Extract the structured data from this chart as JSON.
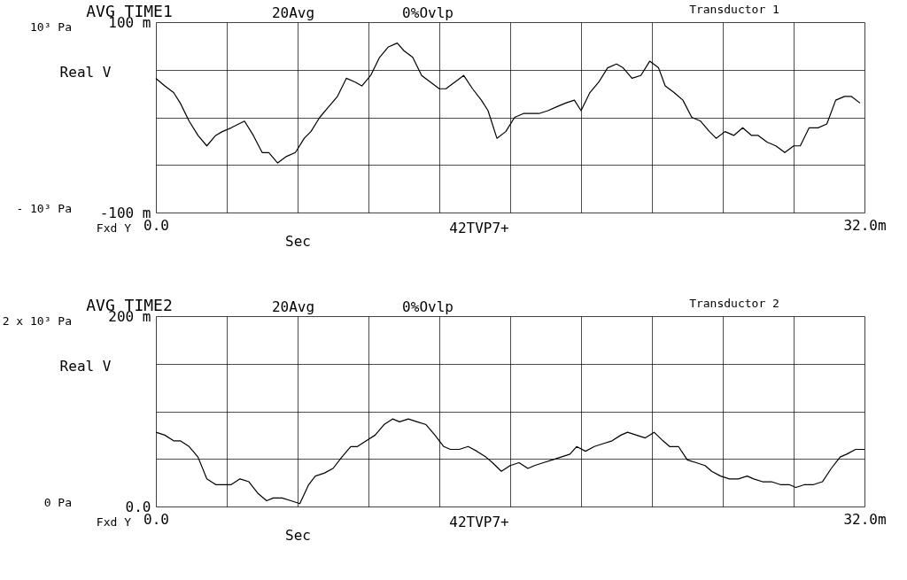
{
  "chart_data": [
    {
      "type": "line",
      "title": "AVG TIME1",
      "xlabel": "Sec",
      "ylabel": "Real V",
      "annotations": [
        "20Avg",
        "0%Ovlp",
        "Transductor 1",
        "10³ Pa",
        "- 10³ Pa",
        "Fxd Y",
        "42TVP7+"
      ],
      "xlim": [
        0,
        32
      ],
      "xticks": [
        {
          "value": 0,
          "label": "0.0"
        },
        {
          "value": 3.2,
          "label": null
        },
        {
          "value": 6.4,
          "label": null
        },
        {
          "value": 9.6,
          "label": null
        },
        {
          "value": 12.8,
          "label": null
        },
        {
          "value": 16,
          "label": null
        },
        {
          "value": 19.2,
          "label": null
        },
        {
          "value": 22.4,
          "label": null
        },
        {
          "value": 25.6,
          "label": null
        },
        {
          "value": 28.8,
          "label": null
        },
        {
          "value": 32,
          "label": "32.0m"
        }
      ],
      "ylim": [
        -100,
        100
      ],
      "yticks": [
        {
          "value": -100,
          "label": "-100 m"
        },
        {
          "value": -50,
          "label": null
        },
        {
          "value": 0,
          "label": null
        },
        {
          "value": 50,
          "label": null
        },
        {
          "value": 100,
          "label": "100 m"
        }
      ],
      "grid": true,
      "series": [
        {
          "color": "#000000",
          "x": [
            0.0,
            0.4,
            0.8,
            1.1,
            1.5,
            1.9,
            2.3,
            2.7,
            3.0,
            3.4,
            4.0,
            4.4,
            4.8,
            5.1,
            5.5,
            5.9,
            6.3,
            6.7,
            7.0,
            7.4,
            7.8,
            8.2,
            8.6,
            9.0,
            9.3,
            9.7,
            10.1,
            10.5,
            10.9,
            11.2,
            11.6,
            12.0,
            12.4,
            12.8,
            13.1,
            13.5,
            13.9,
            14.3,
            14.7,
            15.0,
            15.4,
            15.8,
            16.2,
            16.6,
            17.0,
            17.3,
            17.7,
            18.1,
            18.5,
            18.9,
            19.2,
            19.6,
            20.0,
            20.4,
            20.8,
            21.1,
            21.5,
            21.9,
            22.3,
            22.7,
            23.0,
            23.4,
            23.8,
            24.2,
            24.6,
            25.0,
            25.3,
            25.7,
            26.1,
            26.5,
            26.9,
            27.2,
            27.6,
            28.0,
            28.4,
            28.8,
            29.1,
            29.5,
            29.9,
            30.3,
            30.7,
            31.1,
            31.4,
            31.8
          ],
          "values": [
            41,
            33,
            26,
            15,
            -4,
            -19,
            -30,
            -19,
            -15,
            -11,
            -4,
            -19,
            -37,
            -37,
            -48,
            -41,
            -37,
            -22,
            -15,
            0,
            11,
            22,
            41,
            37,
            33,
            44,
            63,
            74,
            78,
            70,
            63,
            44,
            37,
            30,
            30,
            37,
            44,
            30,
            18,
            7,
            -22,
            -15,
            0,
            4,
            4,
            4,
            7,
            11,
            15,
            18,
            7,
            26,
            37,
            52,
            56,
            52,
            41,
            44,
            59,
            52,
            33,
            26,
            18,
            0,
            -4,
            -15,
            -22,
            -15,
            -19,
            -11,
            -19,
            -19,
            -26,
            -30,
            -37,
            -30,
            -30,
            -11,
            -11,
            -7,
            18,
            22,
            22,
            15
          ]
        }
      ]
    },
    {
      "type": "line",
      "title": "AVG TIME2",
      "xlabel": "Sec",
      "ylabel": "Real V",
      "annotations": [
        "20Avg",
        "0%Ovlp",
        "Transductor 2",
        "2 x 10³ Pa",
        "0 Pa",
        "Fxd Y",
        "42TVP7+"
      ],
      "xlim": [
        0,
        32
      ],
      "xticks": [
        {
          "value": 0,
          "label": "0.0"
        },
        {
          "value": 3.2,
          "label": null
        },
        {
          "value": 6.4,
          "label": null
        },
        {
          "value": 9.6,
          "label": null
        },
        {
          "value": 12.8,
          "label": null
        },
        {
          "value": 16,
          "label": null
        },
        {
          "value": 19.2,
          "label": null
        },
        {
          "value": 22.4,
          "label": null
        },
        {
          "value": 25.6,
          "label": null
        },
        {
          "value": 28.8,
          "label": null
        },
        {
          "value": 32,
          "label": "32.0m"
        }
      ],
      "ylim": [
        0,
        200
      ],
      "yticks": [
        {
          "value": 0,
          "label": "0.0"
        },
        {
          "value": 50,
          "label": null
        },
        {
          "value": 100,
          "label": null
        },
        {
          "value": 150,
          "label": null
        },
        {
          "value": 200,
          "label": "200 m"
        }
      ],
      "grid": true,
      "series": [
        {
          "color": "#000000",
          "x": [
            0.0,
            0.4,
            0.8,
            1.1,
            1.5,
            1.9,
            2.3,
            2.7,
            3.0,
            3.4,
            3.8,
            4.2,
            4.6,
            5.0,
            5.3,
            5.7,
            6.1,
            6.5,
            6.9,
            7.2,
            7.6,
            8.0,
            8.4,
            8.8,
            9.1,
            9.5,
            9.9,
            10.3,
            10.7,
            11.0,
            11.4,
            11.8,
            12.2,
            12.6,
            13.0,
            13.3,
            13.7,
            14.1,
            14.5,
            14.9,
            15.2,
            15.6,
            16.0,
            16.4,
            16.8,
            17.1,
            17.5,
            17.9,
            18.3,
            18.7,
            19.0,
            19.4,
            19.8,
            20.2,
            20.6,
            21.0,
            21.3,
            21.7,
            22.1,
            22.5,
            22.9,
            23.2,
            23.6,
            24.0,
            24.4,
            24.8,
            25.1,
            25.5,
            25.9,
            26.3,
            26.7,
            27.0,
            27.4,
            27.8,
            28.2,
            28.6,
            28.9,
            29.3,
            29.7,
            30.1,
            30.5,
            30.9,
            31.2,
            31.6,
            32.0
          ],
          "values": [
            78,
            75,
            69,
            69,
            63,
            52,
            29,
            23,
            23,
            23,
            29,
            26,
            14,
            6,
            9,
            9,
            6,
            3,
            23,
            32,
            35,
            40,
            52,
            63,
            63,
            69,
            75,
            86,
            92,
            89,
            92,
            89,
            86,
            75,
            63,
            60,
            60,
            63,
            58,
            52,
            46,
            37,
            43,
            46,
            40,
            43,
            46,
            49,
            52,
            55,
            63,
            58,
            63,
            66,
            69,
            75,
            78,
            75,
            72,
            78,
            69,
            63,
            63,
            49,
            46,
            43,
            37,
            32,
            29,
            29,
            32,
            29,
            26,
            26,
            23,
            23,
            20,
            23,
            23,
            26,
            40,
            52,
            55,
            60,
            60
          ]
        }
      ]
    }
  ]
}
